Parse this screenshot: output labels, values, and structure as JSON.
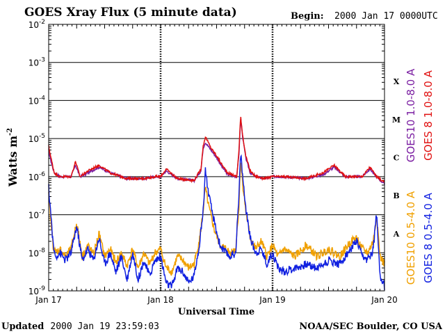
{
  "chart_data": {
    "type": "line",
    "title": "GOES Xray Flux (5 minute data)",
    "begin_label": "Begin:",
    "begin_value": "2000 Jan 17 0000UTC",
    "xlabel": "Universal Time",
    "ylabel_main": "Watts m",
    "ylabel_exp": "-2",
    "y_scale": "log",
    "ylim_exponent": [
      -9,
      -2
    ],
    "y_ticks": [
      {
        "base": "10",
        "exp": "-2",
        "log": -2
      },
      {
        "base": "10",
        "exp": "-3",
        "log": -3
      },
      {
        "base": "10",
        "exp": "-4",
        "log": -4
      },
      {
        "base": "10",
        "exp": "-5",
        "log": -5
      },
      {
        "base": "10",
        "exp": "-6",
        "log": -6
      },
      {
        "base": "10",
        "exp": "-7",
        "log": -7
      },
      {
        "base": "10",
        "exp": "-8",
        "log": -8
      },
      {
        "base": "10",
        "exp": "-9",
        "log": -9
      }
    ],
    "x_range_days": [
      0,
      3
    ],
    "x_ticks": [
      {
        "label": "Jan 17",
        "day": 0
      },
      {
        "label": "Jan 18",
        "day": 1
      },
      {
        "label": "Jan 19",
        "day": 2
      },
      {
        "label": "Jan 20",
        "day": 3
      }
    ],
    "flare_classes": [
      {
        "label": "X",
        "log": -3.5
      },
      {
        "label": "M",
        "log": -4.5
      },
      {
        "label": "C",
        "log": -5.5
      },
      {
        "label": "B",
        "log": -6.5
      },
      {
        "label": "A",
        "log": -7.5
      }
    ],
    "series": [
      {
        "name": "GOES10 1.0-8.0 A",
        "color": "#7b1fa2",
        "band": "long",
        "points": [
          [
            0,
            -5.3
          ],
          [
            0.02,
            -5.6
          ],
          [
            0.05,
            -5.9
          ],
          [
            0.1,
            -6.0
          ],
          [
            0.2,
            -6.0
          ],
          [
            0.24,
            -5.7
          ],
          [
            0.28,
            -6.0
          ],
          [
            0.35,
            -5.9
          ],
          [
            0.45,
            -5.75
          ],
          [
            0.55,
            -5.9
          ],
          [
            0.7,
            -6.05
          ],
          [
            0.85,
            -6.05
          ],
          [
            0.95,
            -6.0
          ],
          [
            1.0,
            -6.0
          ],
          [
            1.05,
            -5.85
          ],
          [
            1.15,
            -6.05
          ],
          [
            1.3,
            -6.1
          ],
          [
            1.36,
            -5.85
          ],
          [
            1.38,
            -5.25
          ],
          [
            1.4,
            -5.1
          ],
          [
            1.45,
            -5.3
          ],
          [
            1.5,
            -5.5
          ],
          [
            1.55,
            -5.75
          ],
          [
            1.6,
            -5.95
          ],
          [
            1.68,
            -6.0
          ],
          [
            1.7,
            -5.4
          ],
          [
            1.715,
            -4.45
          ],
          [
            1.73,
            -4.9
          ],
          [
            1.76,
            -5.5
          ],
          [
            1.8,
            -5.9
          ],
          [
            1.85,
            -6.0
          ],
          [
            1.93,
            -6.05
          ],
          [
            2.0,
            -6.0
          ],
          [
            2.1,
            -6.0
          ],
          [
            2.3,
            -6.05
          ],
          [
            2.45,
            -5.95
          ],
          [
            2.55,
            -5.75
          ],
          [
            2.65,
            -6.0
          ],
          [
            2.8,
            -6.0
          ],
          [
            2.87,
            -5.8
          ],
          [
            2.93,
            -6.0
          ],
          [
            3.0,
            -6.2
          ]
        ]
      },
      {
        "name": "GOES 8 1.0-8.0 A",
        "color": "#e01010",
        "band": "long",
        "points": [
          [
            0,
            -5.2
          ],
          [
            0.02,
            -5.5
          ],
          [
            0.05,
            -5.9
          ],
          [
            0.1,
            -6.0
          ],
          [
            0.2,
            -6.0
          ],
          [
            0.24,
            -5.6
          ],
          [
            0.28,
            -6.0
          ],
          [
            0.35,
            -5.85
          ],
          [
            0.45,
            -5.7
          ],
          [
            0.55,
            -5.9
          ],
          [
            0.7,
            -6.05
          ],
          [
            0.85,
            -6.05
          ],
          [
            0.95,
            -6.0
          ],
          [
            1.0,
            -6.0
          ],
          [
            1.05,
            -5.8
          ],
          [
            1.15,
            -6.05
          ],
          [
            1.3,
            -6.1
          ],
          [
            1.36,
            -5.8
          ],
          [
            1.38,
            -5.2
          ],
          [
            1.4,
            -4.95
          ],
          [
            1.45,
            -5.25
          ],
          [
            1.5,
            -5.45
          ],
          [
            1.55,
            -5.7
          ],
          [
            1.6,
            -5.9
          ],
          [
            1.68,
            -6.0
          ],
          [
            1.7,
            -5.3
          ],
          [
            1.715,
            -4.4
          ],
          [
            1.73,
            -4.85
          ],
          [
            1.76,
            -5.45
          ],
          [
            1.8,
            -5.85
          ],
          [
            1.85,
            -6.0
          ],
          [
            1.93,
            -6.05
          ],
          [
            2.0,
            -6.0
          ],
          [
            2.1,
            -6.0
          ],
          [
            2.3,
            -6.05
          ],
          [
            2.45,
            -5.9
          ],
          [
            2.55,
            -5.7
          ],
          [
            2.65,
            -6.0
          ],
          [
            2.8,
            -6.0
          ],
          [
            2.87,
            -5.75
          ],
          [
            2.93,
            -6.0
          ],
          [
            3.0,
            -6.15
          ]
        ]
      },
      {
        "name": "GOES10 0.5-4.0 A",
        "color": "#f0a000",
        "band": "short",
        "points": [
          [
            0,
            -6.5
          ],
          [
            0.02,
            -7.2
          ],
          [
            0.04,
            -7.8
          ],
          [
            0.06,
            -8.0
          ],
          [
            0.1,
            -7.9
          ],
          [
            0.15,
            -8.1
          ],
          [
            0.2,
            -7.9
          ],
          [
            0.25,
            -7.2
          ],
          [
            0.3,
            -8.1
          ],
          [
            0.35,
            -7.8
          ],
          [
            0.4,
            -8.05
          ],
          [
            0.45,
            -7.5
          ],
          [
            0.5,
            -8.1
          ],
          [
            0.55,
            -7.9
          ],
          [
            0.6,
            -8.25
          ],
          [
            0.65,
            -8.0
          ],
          [
            0.7,
            -8.35
          ],
          [
            0.75,
            -7.9
          ],
          [
            0.8,
            -8.4
          ],
          [
            0.85,
            -8.0
          ],
          [
            0.9,
            -8.3
          ],
          [
            0.95,
            -8.0
          ],
          [
            1.0,
            -7.9
          ],
          [
            1.05,
            -8.4
          ],
          [
            1.1,
            -8.5
          ],
          [
            1.15,
            -8.1
          ],
          [
            1.2,
            -8.2
          ],
          [
            1.25,
            -8.4
          ],
          [
            1.3,
            -8.3
          ],
          [
            1.35,
            -7.6
          ],
          [
            1.38,
            -6.9
          ],
          [
            1.4,
            -6.3
          ],
          [
            1.43,
            -6.8
          ],
          [
            1.48,
            -7.4
          ],
          [
            1.53,
            -7.8
          ],
          [
            1.58,
            -7.9
          ],
          [
            1.62,
            -8.0
          ],
          [
            1.67,
            -7.9
          ],
          [
            1.7,
            -6.8
          ],
          [
            1.715,
            -5.55
          ],
          [
            1.73,
            -6.1
          ],
          [
            1.76,
            -6.9
          ],
          [
            1.8,
            -7.6
          ],
          [
            1.85,
            -7.9
          ],
          [
            1.9,
            -7.7
          ],
          [
            1.95,
            -8.1
          ],
          [
            2.0,
            -7.8
          ],
          [
            2.05,
            -8.1
          ],
          [
            2.1,
            -7.9
          ],
          [
            2.2,
            -8.1
          ],
          [
            2.3,
            -7.8
          ],
          [
            2.4,
            -8.1
          ],
          [
            2.5,
            -7.9
          ],
          [
            2.6,
            -8.1
          ],
          [
            2.7,
            -7.7
          ],
          [
            2.75,
            -7.6
          ],
          [
            2.8,
            -7.9
          ],
          [
            2.85,
            -8.0
          ],
          [
            2.9,
            -7.7
          ],
          [
            2.93,
            -7.0
          ],
          [
            2.96,
            -8.1
          ],
          [
            3.0,
            -8.3
          ]
        ]
      },
      {
        "name": "GOES 8 0.5-4.0 A",
        "color": "#1020e0",
        "band": "short",
        "points": [
          [
            0,
            -6.3
          ],
          [
            0.02,
            -7.0
          ],
          [
            0.04,
            -7.8
          ],
          [
            0.06,
            -8.1
          ],
          [
            0.1,
            -8.0
          ],
          [
            0.15,
            -8.2
          ],
          [
            0.2,
            -8.0
          ],
          [
            0.25,
            -7.3
          ],
          [
            0.3,
            -8.2
          ],
          [
            0.35,
            -7.9
          ],
          [
            0.4,
            -8.2
          ],
          [
            0.45,
            -7.6
          ],
          [
            0.5,
            -8.3
          ],
          [
            0.55,
            -8.0
          ],
          [
            0.6,
            -8.5
          ],
          [
            0.65,
            -8.1
          ],
          [
            0.7,
            -8.7
          ],
          [
            0.75,
            -8.0
          ],
          [
            0.8,
            -8.7
          ],
          [
            0.85,
            -8.2
          ],
          [
            0.9,
            -8.6
          ],
          [
            0.95,
            -8.2
          ],
          [
            1.0,
            -8.1
          ],
          [
            1.05,
            -8.8
          ],
          [
            1.1,
            -8.9
          ],
          [
            1.15,
            -8.4
          ],
          [
            1.2,
            -8.5
          ],
          [
            1.25,
            -8.8
          ],
          [
            1.3,
            -8.6
          ],
          [
            1.35,
            -7.7
          ],
          [
            1.38,
            -6.9
          ],
          [
            1.4,
            -5.8
          ],
          [
            1.43,
            -6.5
          ],
          [
            1.48,
            -7.2
          ],
          [
            1.53,
            -7.8
          ],
          [
            1.58,
            -8.0
          ],
          [
            1.62,
            -8.1
          ],
          [
            1.67,
            -8.0
          ],
          [
            1.7,
            -6.5
          ],
          [
            1.715,
            -5.35
          ],
          [
            1.73,
            -5.9
          ],
          [
            1.76,
            -6.8
          ],
          [
            1.8,
            -7.6
          ],
          [
            1.85,
            -8.0
          ],
          [
            1.9,
            -7.9
          ],
          [
            1.95,
            -8.3
          ],
          [
            2.0,
            -8.0
          ],
          [
            2.05,
            -8.4
          ],
          [
            2.1,
            -8.5
          ],
          [
            2.2,
            -8.4
          ],
          [
            2.3,
            -8.3
          ],
          [
            2.4,
            -8.4
          ],
          [
            2.5,
            -8.2
          ],
          [
            2.6,
            -8.3
          ],
          [
            2.7,
            -7.9
          ],
          [
            2.75,
            -7.7
          ],
          [
            2.8,
            -8.1
          ],
          [
            2.85,
            -8.2
          ],
          [
            2.9,
            -7.9
          ],
          [
            2.93,
            -6.9
          ],
          [
            2.96,
            -8.6
          ],
          [
            3.0,
            -8.9
          ]
        ]
      }
    ]
  },
  "footer": {
    "updated_label": "Updated",
    "updated_value": "2000 Jan 19 23:59:03",
    "source": "NOAA/SEC Boulder, CO USA"
  }
}
